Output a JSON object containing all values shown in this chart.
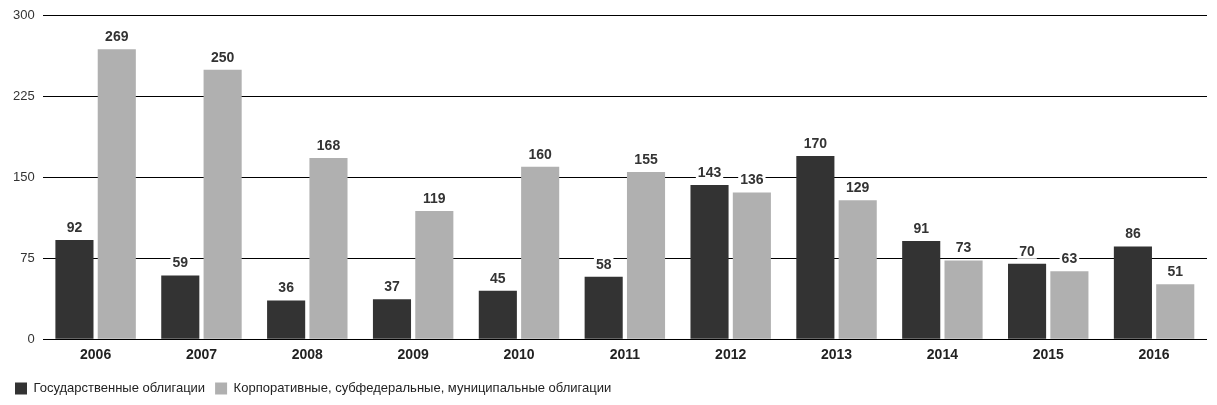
{
  "chart_data": {
    "type": "bar",
    "categories": [
      "2006",
      "2007",
      "2008",
      "2009",
      "2010",
      "2011",
      "2012",
      "2013",
      "2014",
      "2015",
      "2016"
    ],
    "series": [
      {
        "name": "Государственные облигации",
        "color": "#333333",
        "values": [
          92,
          59,
          36,
          37,
          45,
          58,
          143,
          170,
          91,
          70,
          86
        ]
      },
      {
        "name": "Корпоративные, субфедеральные, муниципальные облигации",
        "color": "#b0b0b0",
        "values": [
          269,
          250,
          168,
          119,
          160,
          155,
          136,
          129,
          73,
          63,
          51
        ]
      }
    ],
    "ylim": [
      0,
      300
    ],
    "yticks": [
      0,
      75,
      150,
      225,
      300
    ],
    "grid": "y",
    "legend": "bottom left",
    "data_labels": true
  }
}
